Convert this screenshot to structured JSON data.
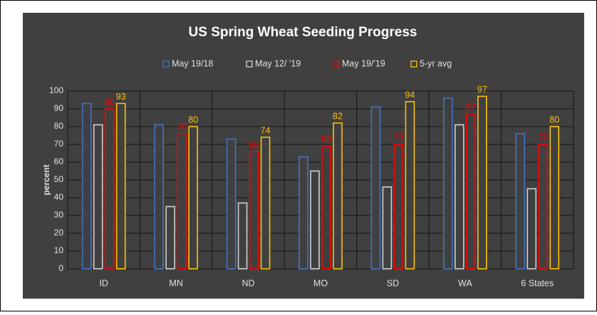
{
  "chart_data": {
    "type": "bar",
    "title": "US Spring Wheat Seeding Progress",
    "y_label": "percent",
    "categories": [
      "ID",
      "MN",
      "ND",
      "MO",
      "SD",
      "WA",
      "6 States"
    ],
    "series": [
      {
        "name": "May 19/18",
        "color": "#4472c4",
        "values": [
          93,
          81,
          73,
          63,
          91,
          96,
          76
        ]
      },
      {
        "name": "May 12/ '19",
        "color": "#d0d0d0",
        "values": [
          81,
          35,
          37,
          55,
          46,
          81,
          45
        ]
      },
      {
        "name": "May 19/'19",
        "color": "#ff0000",
        "values": [
          90,
          76,
          66,
          69,
          70,
          87,
          70
        ],
        "data_labels": true
      },
      {
        "name": "5-yr avg",
        "color": "#ffc000",
        "values": [
          93,
          80,
          74,
          82,
          94,
          97,
          80
        ],
        "data_labels": true
      }
    ],
    "ylim": [
      0,
      100
    ],
    "yticks": [
      0,
      10,
      20,
      30,
      40,
      50,
      60,
      70,
      80,
      90,
      100
    ],
    "grid": true,
    "legend": "top"
  }
}
